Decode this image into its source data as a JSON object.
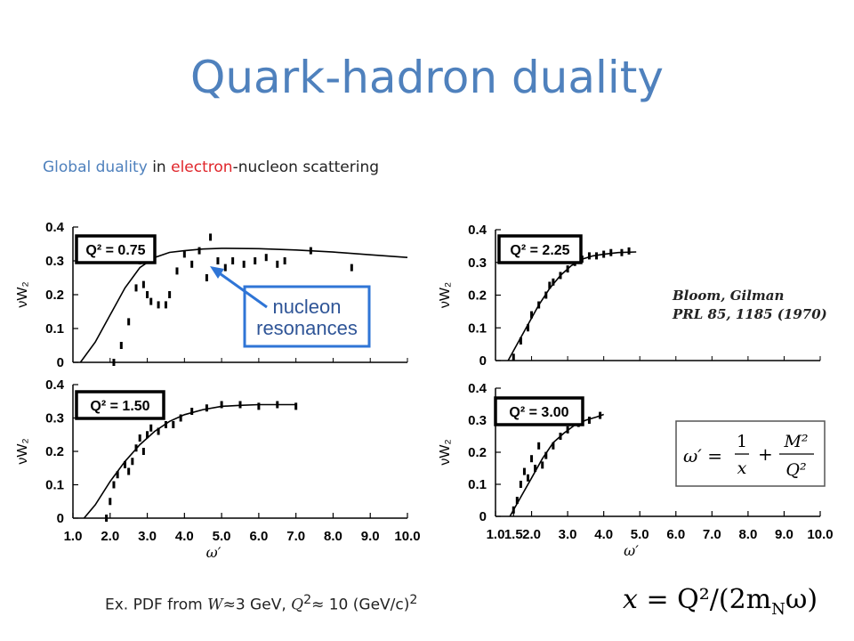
{
  "slide": {
    "title": "Quark-hadron duality",
    "subtitle": {
      "part1": "Global duality",
      "part2": " in ",
      "part3": "electron",
      "part4": "-nucleon scattering"
    },
    "annotation": {
      "line1": "nucleon",
      "line2": "resonances"
    },
    "citation": {
      "line1": "Bloom, Gilman",
      "line2": "PRL 85, 1185 (1970)"
    },
    "formula_omega": {
      "lhs": "ω′ =",
      "frac1_num": "1",
      "frac1_den": "x",
      "plus": "+",
      "frac2_num": "M²",
      "frac2_den": "Q²"
    },
    "footnote": {
      "prefix": "Ex. PDF from ",
      "w_var": "W",
      "w_val": "≈3 GeV, ",
      "q_var": "Q",
      "q_sup": "2",
      "q_val": "≈ 10 (GeV/c)",
      "unit_sup": "2"
    },
    "formula_x": {
      "lhs": "x",
      "rhs": "= Q²/(2m",
      "sub": "N",
      "end": "ω)"
    }
  },
  "chart_data": [
    {
      "type": "line",
      "panel": "top-left",
      "label": "Q² = 0.75",
      "xlabel": "",
      "ylabel": "νW₂",
      "xlim": [
        1.0,
        10.0
      ],
      "ylim": [
        0,
        0.4
      ],
      "yticks": [
        "0",
        "0.1",
        "0.2",
        "0.3",
        "0.4"
      ],
      "series": [
        {
          "style": "solid",
          "x": [
            1.2,
            1.6,
            2.0,
            2.4,
            2.8,
            3.2,
            3.6,
            4.0,
            4.5,
            5.0,
            6.0,
            7.0,
            8.0,
            9.0,
            10.0
          ],
          "y": [
            0.0,
            0.06,
            0.14,
            0.22,
            0.28,
            0.31,
            0.325,
            0.33,
            0.335,
            0.337,
            0.336,
            0.332,
            0.326,
            0.318,
            0.31
          ]
        },
        {
          "style": "points",
          "x": [
            2.1,
            2.3,
            2.5,
            2.7,
            2.8,
            2.9,
            3.0,
            3.1,
            3.3,
            3.5,
            3.6,
            3.8,
            4.0,
            4.2,
            4.4,
            4.6,
            4.7,
            4.9,
            5.1,
            5.3,
            5.6,
            5.9,
            6.2,
            6.5,
            6.7,
            7.4,
            8.5
          ],
          "y": [
            0.0,
            0.05,
            0.12,
            0.22,
            0.3,
            0.23,
            0.2,
            0.18,
            0.17,
            0.17,
            0.2,
            0.27,
            0.32,
            0.29,
            0.33,
            0.25,
            0.37,
            0.3,
            0.28,
            0.3,
            0.29,
            0.3,
            0.31,
            0.29,
            0.3,
            0.33,
            0.28
          ]
        }
      ]
    },
    {
      "type": "line",
      "panel": "top-right",
      "label": "Q² = 2.25",
      "xlabel": "",
      "ylabel": "νW₂",
      "xlim": [
        1.0,
        10.0
      ],
      "ylim": [
        0,
        0.4
      ],
      "yticks": [
        "0",
        "0.1",
        "0.2",
        "0.3",
        "0.4"
      ],
      "series": [
        {
          "style": "solid",
          "x": [
            1.35,
            1.6,
            1.9,
            2.2,
            2.5,
            2.8,
            3.1,
            3.4,
            3.7,
            4.0,
            4.4,
            4.9
          ],
          "y": [
            0.0,
            0.05,
            0.11,
            0.17,
            0.22,
            0.26,
            0.29,
            0.31,
            0.32,
            0.325,
            0.33,
            0.332
          ]
        },
        {
          "style": "points",
          "x": [
            1.5,
            1.7,
            1.9,
            2.0,
            2.2,
            2.4,
            2.5,
            2.6,
            2.8,
            3.0,
            3.2,
            3.4,
            3.6,
            3.8,
            4.0,
            4.2,
            4.5,
            4.7
          ],
          "y": [
            0.01,
            0.06,
            0.1,
            0.14,
            0.17,
            0.2,
            0.23,
            0.24,
            0.26,
            0.28,
            0.3,
            0.31,
            0.32,
            0.32,
            0.325,
            0.33,
            0.33,
            0.335
          ]
        }
      ]
    },
    {
      "type": "line",
      "panel": "bottom-left",
      "label": "Q² = 1.50",
      "xlabel": "ω′",
      "ylabel": "νW₂",
      "xlim": [
        1.0,
        10.0
      ],
      "ylim": [
        0,
        0.4
      ],
      "xticks": [
        "1.0",
        "2.0",
        "3.0",
        "4.0",
        "5.0",
        "6.0",
        "7.0",
        "8.0",
        "9.0",
        "10.0"
      ],
      "yticks": [
        "0",
        "0.1",
        "0.2",
        "0.3",
        "0.4"
      ],
      "series": [
        {
          "style": "solid",
          "x": [
            1.3,
            1.6,
            2.0,
            2.4,
            2.8,
            3.2,
            3.6,
            4.0,
            4.5,
            5.0,
            5.5,
            6.0,
            6.5,
            7.0
          ],
          "y": [
            0.0,
            0.04,
            0.11,
            0.17,
            0.22,
            0.26,
            0.29,
            0.31,
            0.325,
            0.335,
            0.338,
            0.34,
            0.34,
            0.34
          ]
        },
        {
          "style": "points",
          "x": [
            1.9,
            2.0,
            2.1,
            2.2,
            2.4,
            2.5,
            2.6,
            2.7,
            2.8,
            2.9,
            3.0,
            3.1,
            3.3,
            3.5,
            3.7,
            3.9,
            4.2,
            4.6,
            5.0,
            5.5,
            6.0,
            6.5,
            7.0
          ],
          "y": [
            0.0,
            0.05,
            0.1,
            0.13,
            0.16,
            0.14,
            0.17,
            0.21,
            0.24,
            0.2,
            0.25,
            0.27,
            0.26,
            0.28,
            0.28,
            0.3,
            0.32,
            0.33,
            0.34,
            0.34,
            0.335,
            0.34,
            0.335
          ]
        }
      ]
    },
    {
      "type": "line",
      "panel": "bottom-right",
      "label": "Q² = 3.00",
      "xlabel": "ω′",
      "ylabel": "νW₂",
      "xlim": [
        1.0,
        10.0
      ],
      "ylim": [
        0,
        0.4
      ],
      "xticks": [
        "1.0",
        "1.5",
        "2.0",
        "3.0",
        "4.0",
        "5.0",
        "6.0",
        "7.0",
        "8.0",
        "9.0",
        "10.0"
      ],
      "yticks": [
        "0",
        "0.1",
        "0.2",
        "0.3",
        "0.4"
      ],
      "series": [
        {
          "style": "solid",
          "x": [
            1.4,
            1.7,
            2.0,
            2.3,
            2.6,
            2.9,
            3.2,
            3.5,
            3.8,
            4.0
          ],
          "y": [
            0.0,
            0.06,
            0.12,
            0.18,
            0.23,
            0.26,
            0.285,
            0.3,
            0.31,
            0.318
          ]
        },
        {
          "style": "points",
          "x": [
            1.5,
            1.6,
            1.7,
            1.8,
            1.9,
            2.0,
            2.1,
            2.2,
            2.3,
            2.4,
            2.6,
            2.8,
            3.0,
            3.3,
            3.6,
            3.9
          ],
          "y": [
            0.02,
            0.05,
            0.1,
            0.14,
            0.12,
            0.18,
            0.15,
            0.22,
            0.16,
            0.19,
            0.22,
            0.25,
            0.27,
            0.29,
            0.3,
            0.315
          ]
        }
      ]
    }
  ]
}
